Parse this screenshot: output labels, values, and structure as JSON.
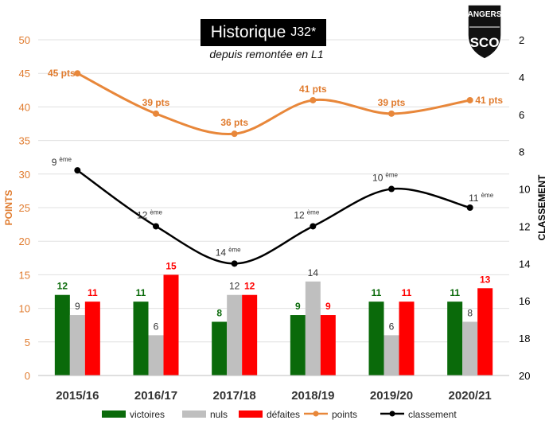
{
  "title": {
    "main": "Historique",
    "suffix": "J32*"
  },
  "subtitle": "depuis remontée en L1",
  "logo": {
    "text_top": "ANGERS",
    "text_bottom": "SCO"
  },
  "colors": {
    "victoires": "#0a6a0a",
    "nuls": "#bfbfbf",
    "defaites": "#ff0000",
    "points": "#e8873a",
    "classement": "#000000",
    "left_axis": "#e07b2e",
    "grid": "#e0e0e0"
  },
  "chart_data": {
    "type": "bar",
    "categories": [
      "2015/16",
      "2016/17",
      "2017/18",
      "2018/19",
      "2019/20",
      "2020/21"
    ],
    "series": [
      {
        "name": "victoires",
        "type": "bar",
        "axis": "left",
        "values": [
          12,
          11,
          8,
          9,
          11,
          11
        ]
      },
      {
        "name": "nuls",
        "type": "bar",
        "axis": "left",
        "values": [
          9,
          6,
          12,
          14,
          6,
          8
        ]
      },
      {
        "name": "défaites",
        "type": "bar",
        "axis": "left",
        "values": [
          11,
          15,
          12,
          9,
          11,
          13
        ]
      },
      {
        "name": "points",
        "type": "line",
        "axis": "left",
        "values": [
          45,
          39,
          36,
          41,
          39,
          41
        ],
        "labels": [
          "45 pts",
          "39 pts",
          "36 pts",
          "41 pts",
          "39 pts",
          "41 pts"
        ]
      },
      {
        "name": "classement",
        "type": "line",
        "axis": "right",
        "values": [
          9,
          12,
          14,
          12,
          10,
          11
        ],
        "labels": [
          "9",
          "12",
          "14",
          "12",
          "10",
          "11"
        ],
        "label_suffix": "ème"
      }
    ],
    "y_left": {
      "label": "POINTS",
      "range": [
        0,
        50
      ],
      "ticks": [
        "0",
        "5",
        "10",
        "15",
        "20",
        "25",
        "30",
        "35",
        "40",
        "45",
        "50"
      ]
    },
    "y_right": {
      "label": "CLASSEMENT",
      "range": [
        2,
        20
      ],
      "inverted": true,
      "ticks": [
        "2",
        "4",
        "6",
        "8",
        "10",
        "12",
        "14",
        "16",
        "18",
        "20"
      ]
    },
    "grid": true,
    "legend_position": "bottom"
  }
}
